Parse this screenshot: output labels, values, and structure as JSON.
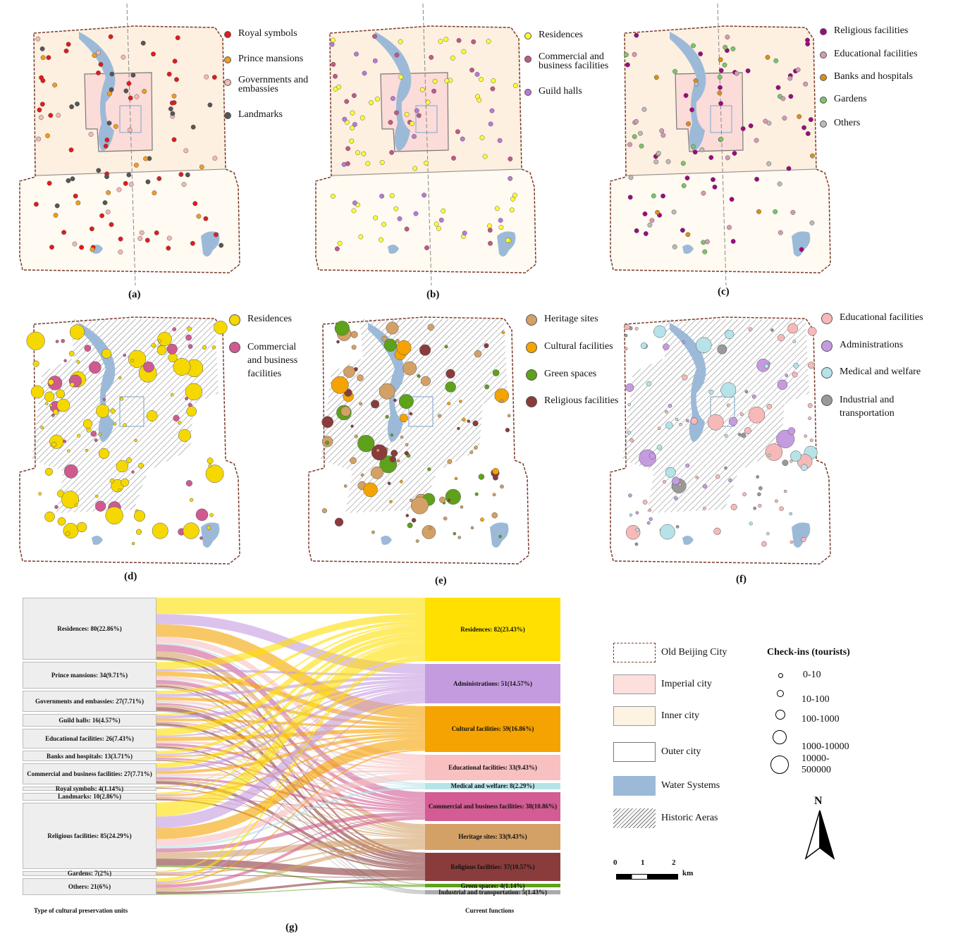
{
  "panels": {
    "a": {
      "label": "(a)",
      "legend": [
        {
          "label": "Royal symbols",
          "color": "#e31a1c"
        },
        {
          "label": "Prince mansions",
          "color": "#f39c1f"
        },
        {
          "label": "Governments and embassies",
          "color": "#f4b9b5"
        },
        {
          "label": "Landmarks",
          "color": "#555555"
        }
      ]
    },
    "b": {
      "label": "(b)",
      "legend": [
        {
          "label": "Residences",
          "color": "#ffff33"
        },
        {
          "label": "Commercial and business facilities",
          "color": "#c2578b"
        },
        {
          "label": "Guild halls",
          "color": "#b87ad8"
        }
      ]
    },
    "c": {
      "label": "(c)",
      "legend": [
        {
          "label": "Religious facilities",
          "color": "#9c0a80"
        },
        {
          "label": "Educational facilities",
          "color": "#d49ab6"
        },
        {
          "label": "Banks and hospitals",
          "color": "#d98f1a"
        },
        {
          "label": "Gardens",
          "color": "#7cc46b"
        },
        {
          "label": "Others",
          "color": "#bbbbbb"
        }
      ]
    },
    "d": {
      "label": "(d)",
      "legend": [
        {
          "label": "Residences",
          "color": "#f5d800"
        },
        {
          "label": "Commercial and business facilities",
          "color": "#cf5a8f"
        }
      ]
    },
    "e": {
      "label": "(e)",
      "legend": [
        {
          "label": "Heritage sites",
          "color": "#d3a066"
        },
        {
          "label": "Cultural facilities",
          "color": "#f5a300"
        },
        {
          "label": "Green spaces",
          "color": "#5ea11a"
        },
        {
          "label": "Religious facilities",
          "color": "#8a3b3b"
        }
      ]
    },
    "f": {
      "label": "(f)",
      "legend": [
        {
          "label": "Educational facilities",
          "color": "#f7b8b8"
        },
        {
          "label": "Administrations",
          "color": "#c59be0"
        },
        {
          "label": "Medical and welfare",
          "color": "#b5e3e8"
        },
        {
          "label": "Industrial and transportation",
          "color": "#999999"
        }
      ]
    }
  },
  "sankey": {
    "label": "(g)",
    "left_caption": "Type of cultural preservation units",
    "right_caption": "Current functions",
    "left_nodes": [
      {
        "label": "Residences: 80(22.86%)",
        "value": 80
      },
      {
        "label": "Prince mansions: 34(9.71%)",
        "value": 34
      },
      {
        "label": "Governments and embassies: 27(7.71%)",
        "value": 27
      },
      {
        "label": "Guild halls: 16(4.57%)",
        "value": 16
      },
      {
        "label": "Educational facilities: 26(7.43%)",
        "value": 26
      },
      {
        "label": "Banks and hospitals: 13(3.71%)",
        "value": 13
      },
      {
        "label": "Commercial and business facilities: 27(7.71%)",
        "value": 27
      },
      {
        "label": "Royal symbols: 4(1.14%)",
        "value": 4
      },
      {
        "label": "Landmarks: 10(2.86%)",
        "value": 10
      },
      {
        "label": "Religious facilities: 85(24.29%)",
        "value": 85
      },
      {
        "label": "Gardens: 7(2%)",
        "value": 7
      },
      {
        "label": "Others: 21(6%)",
        "value": 21
      }
    ],
    "right_nodes": [
      {
        "label": "Residences: 82(23.43%)",
        "value": 82,
        "color": "#ffe000"
      },
      {
        "label": "Administrations: 51(14.57%)",
        "value": 51,
        "color": "#c59be0"
      },
      {
        "label": "Cultural facilities: 59(16.86%)",
        "value": 59,
        "color": "#f5a300"
      },
      {
        "label": "Educational facilities: 33(9.43%)",
        "value": 33,
        "color": "#f8c0c0"
      },
      {
        "label": "Medical and welfare: 8(2.29%)",
        "value": 8,
        "color": "#b5e3e8"
      },
      {
        "label": "Commercial and business facilities: 38(10.86%)",
        "value": 38,
        "color": "#d25c93"
      },
      {
        "label": "Heritage sites: 33(9.43%)",
        "value": 33,
        "color": "#d3a066"
      },
      {
        "label": "Religious facilities: 37(10.57%)",
        "value": 37,
        "color": "#8a3b3b"
      },
      {
        "label": "Green spaces: 4(1.14%)",
        "value": 4,
        "color": "#5ea11a"
      },
      {
        "label": "Industrial and transportation: 5(1.43%)",
        "value": 5,
        "color": "#aaaaaa"
      }
    ]
  },
  "map_key": {
    "items": [
      {
        "label": "Old Beijing City"
      },
      {
        "label": "Imperial city",
        "color": "#fde0de"
      },
      {
        "label": "Inner city",
        "color": "#fdf3e3"
      },
      {
        "label": "Outer city",
        "color": "#ffffff"
      },
      {
        "label": "Water Systems",
        "color": "#9cbad8"
      },
      {
        "label": "Historic Aeras"
      }
    ],
    "checkins_title": "Check-ins (tourists)",
    "checkins": [
      "0-10",
      "10-100",
      "100-1000",
      "1000-10000",
      "10000-500000"
    ],
    "north": "N",
    "scale": {
      "ticks": [
        "0",
        "1",
        "2"
      ],
      "unit": "km"
    }
  }
}
